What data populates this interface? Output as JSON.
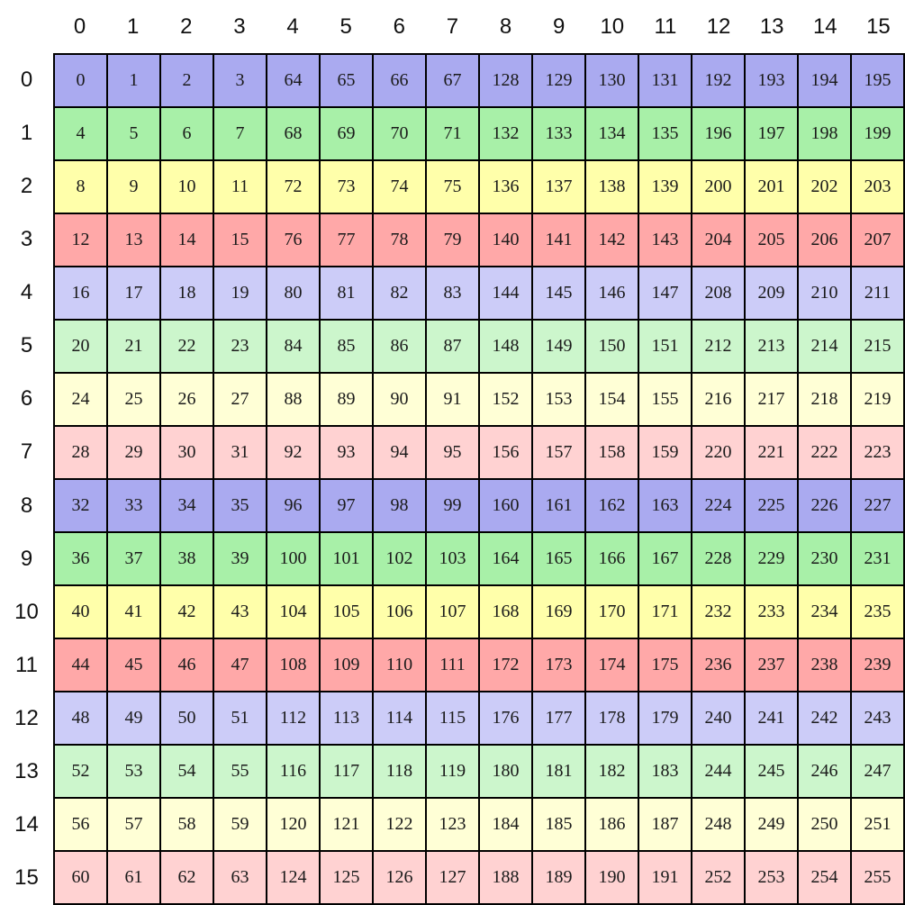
{
  "figure": {
    "description": "16x16 index matrix diagram, values 0-255 in column-block stride order, rows color-coded",
    "background": "#ffffff",
    "border_color": "#000000",
    "header_text_color": "#111111",
    "cell_text_color": "#1a1a1a"
  },
  "grid": {
    "col_headers": [
      "0",
      "1",
      "2",
      "3",
      "4",
      "5",
      "6",
      "7",
      "8",
      "9",
      "10",
      "11",
      "12",
      "13",
      "14",
      "15"
    ],
    "row_headers": [
      "0",
      "1",
      "2",
      "3",
      "4",
      "5",
      "6",
      "7",
      "8",
      "9",
      "10",
      "11",
      "12",
      "13",
      "14",
      "15"
    ],
    "row_colors": [
      "#aaaaf0",
      "#a8f0a8",
      "#ffffaa",
      "#ffa8a8",
      "#ccccf8",
      "#ccf6cc",
      "#ffffd6",
      "#ffd2d2",
      "#aaaaf0",
      "#a8f0a8",
      "#ffffaa",
      "#ffa8a8",
      "#ccccf8",
      "#ccf6cc",
      "#ffffd6",
      "#ffd2d2"
    ],
    "values": [
      [
        0,
        1,
        2,
        3,
        64,
        65,
        66,
        67,
        128,
        129,
        130,
        131,
        192,
        193,
        194,
        195
      ],
      [
        4,
        5,
        6,
        7,
        68,
        69,
        70,
        71,
        132,
        133,
        134,
        135,
        196,
        197,
        198,
        199
      ],
      [
        8,
        9,
        10,
        11,
        72,
        73,
        74,
        75,
        136,
        137,
        138,
        139,
        200,
        201,
        202,
        203
      ],
      [
        12,
        13,
        14,
        15,
        76,
        77,
        78,
        79,
        140,
        141,
        142,
        143,
        204,
        205,
        206,
        207
      ],
      [
        16,
        17,
        18,
        19,
        80,
        81,
        82,
        83,
        144,
        145,
        146,
        147,
        208,
        209,
        210,
        211
      ],
      [
        20,
        21,
        22,
        23,
        84,
        85,
        86,
        87,
        148,
        149,
        150,
        151,
        212,
        213,
        214,
        215
      ],
      [
        24,
        25,
        26,
        27,
        88,
        89,
        90,
        91,
        152,
        153,
        154,
        155,
        216,
        217,
        218,
        219
      ],
      [
        28,
        29,
        30,
        31,
        92,
        93,
        94,
        95,
        156,
        157,
        158,
        159,
        220,
        221,
        222,
        223
      ],
      [
        32,
        33,
        34,
        35,
        96,
        97,
        98,
        99,
        160,
        161,
        162,
        163,
        224,
        225,
        226,
        227
      ],
      [
        36,
        37,
        38,
        39,
        100,
        101,
        102,
        103,
        164,
        165,
        166,
        167,
        228,
        229,
        230,
        231
      ],
      [
        40,
        41,
        42,
        43,
        104,
        105,
        106,
        107,
        168,
        169,
        170,
        171,
        232,
        233,
        234,
        235
      ],
      [
        44,
        45,
        46,
        47,
        108,
        109,
        110,
        111,
        172,
        173,
        174,
        175,
        236,
        237,
        238,
        239
      ],
      [
        48,
        49,
        50,
        51,
        112,
        113,
        114,
        115,
        176,
        177,
        178,
        179,
        240,
        241,
        242,
        243
      ],
      [
        52,
        53,
        54,
        55,
        116,
        117,
        118,
        119,
        180,
        181,
        182,
        183,
        244,
        245,
        246,
        247
      ],
      [
        56,
        57,
        58,
        59,
        120,
        121,
        122,
        123,
        184,
        185,
        186,
        187,
        248,
        249,
        250,
        251
      ],
      [
        60,
        61,
        62,
        63,
        124,
        125,
        126,
        127,
        188,
        189,
        190,
        191,
        252,
        253,
        254,
        255
      ]
    ]
  }
}
